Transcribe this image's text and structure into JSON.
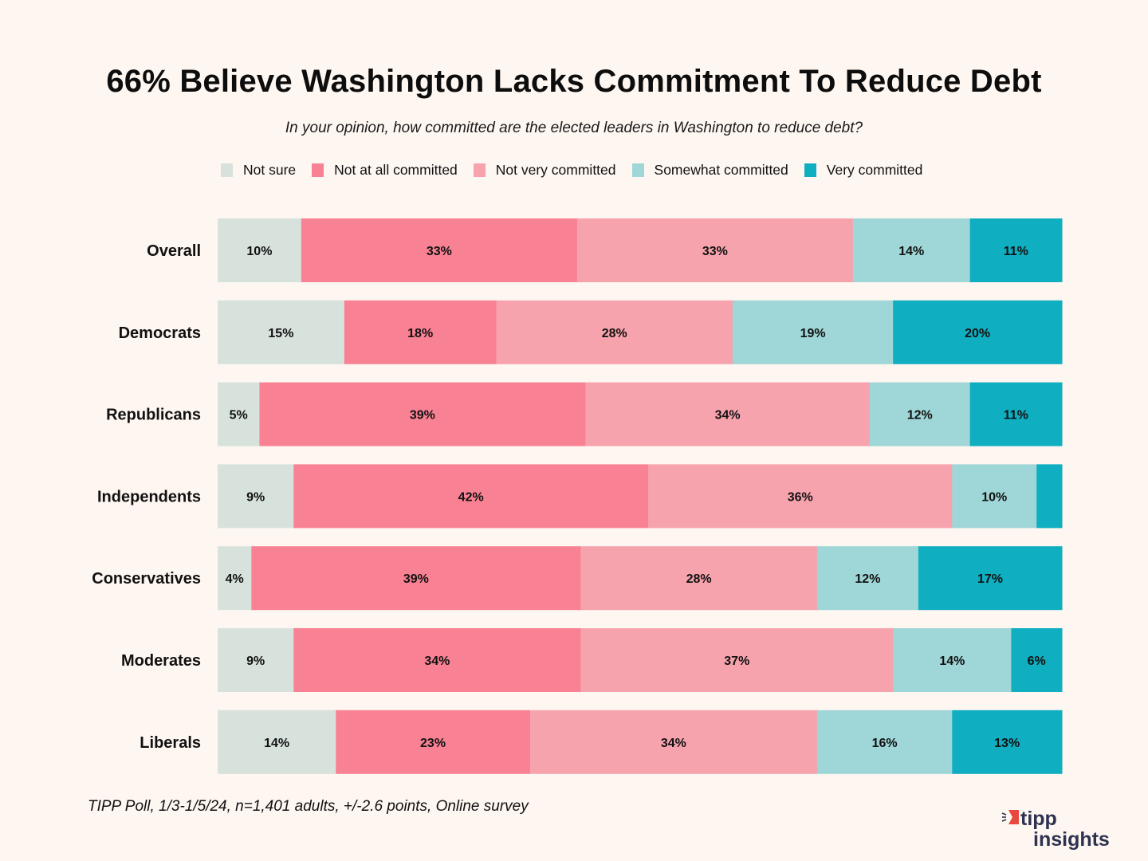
{
  "chart_data": {
    "type": "bar",
    "orientation": "horizontal",
    "stacked": true,
    "title": "66% Believe Washington Lacks Commitment To Reduce Debt",
    "subtitle": "In your opinion, how committed are the elected leaders in Washington to reduce debt?",
    "xlabel": "",
    "ylabel": "",
    "xlim": [
      0,
      100
    ],
    "grid": false,
    "legend_position": "top",
    "categories": [
      "Overall",
      "Democrats",
      "Republicans",
      "Independents",
      "Conservatives",
      "Moderates",
      "Liberals"
    ],
    "series": [
      {
        "name": "Not sure",
        "color": "#d8e2dd",
        "values": [
          10,
          15,
          5,
          9,
          4,
          9,
          14
        ],
        "labels": [
          "10%",
          "15%",
          "5%",
          "9%",
          "4%",
          "9%",
          "14%"
        ]
      },
      {
        "name": "Not at all committed",
        "color": "#f98194",
        "values": [
          33,
          18,
          39,
          42,
          39,
          34,
          23
        ],
        "labels": [
          "33%",
          "18%",
          "39%",
          "42%",
          "39%",
          "34%",
          "23%"
        ]
      },
      {
        "name": "Not very committed",
        "color": "#f7a3ae",
        "values": [
          33,
          28,
          34,
          36,
          28,
          37,
          34
        ],
        "labels": [
          "33%",
          "28%",
          "34%",
          "36%",
          "28%",
          "37%",
          "34%"
        ]
      },
      {
        "name": "Somewhat committed",
        "color": "#9fd6d7",
        "values": [
          14,
          19,
          12,
          10,
          12,
          14,
          16
        ],
        "labels": [
          "14%",
          "19%",
          "12%",
          "10%",
          "12%",
          "14%",
          "16%"
        ]
      },
      {
        "name": "Very committed",
        "color": "#0faec1",
        "values": [
          11,
          20,
          11,
          3,
          17,
          6,
          13
        ],
        "labels": [
          "11%",
          "20%",
          "11%",
          "",
          "17%",
          "6%",
          "13%"
        ]
      }
    ]
  },
  "source": "TIPP Poll, 1/3-1/5/24, n=1,401 adults, +/-2.6 points, Online survey",
  "logo": {
    "line1": "tipp",
    "line2": "insights",
    "brand_color": "#e8483e",
    "text_color": "#2d3250"
  },
  "background_color": "#fef6f1"
}
